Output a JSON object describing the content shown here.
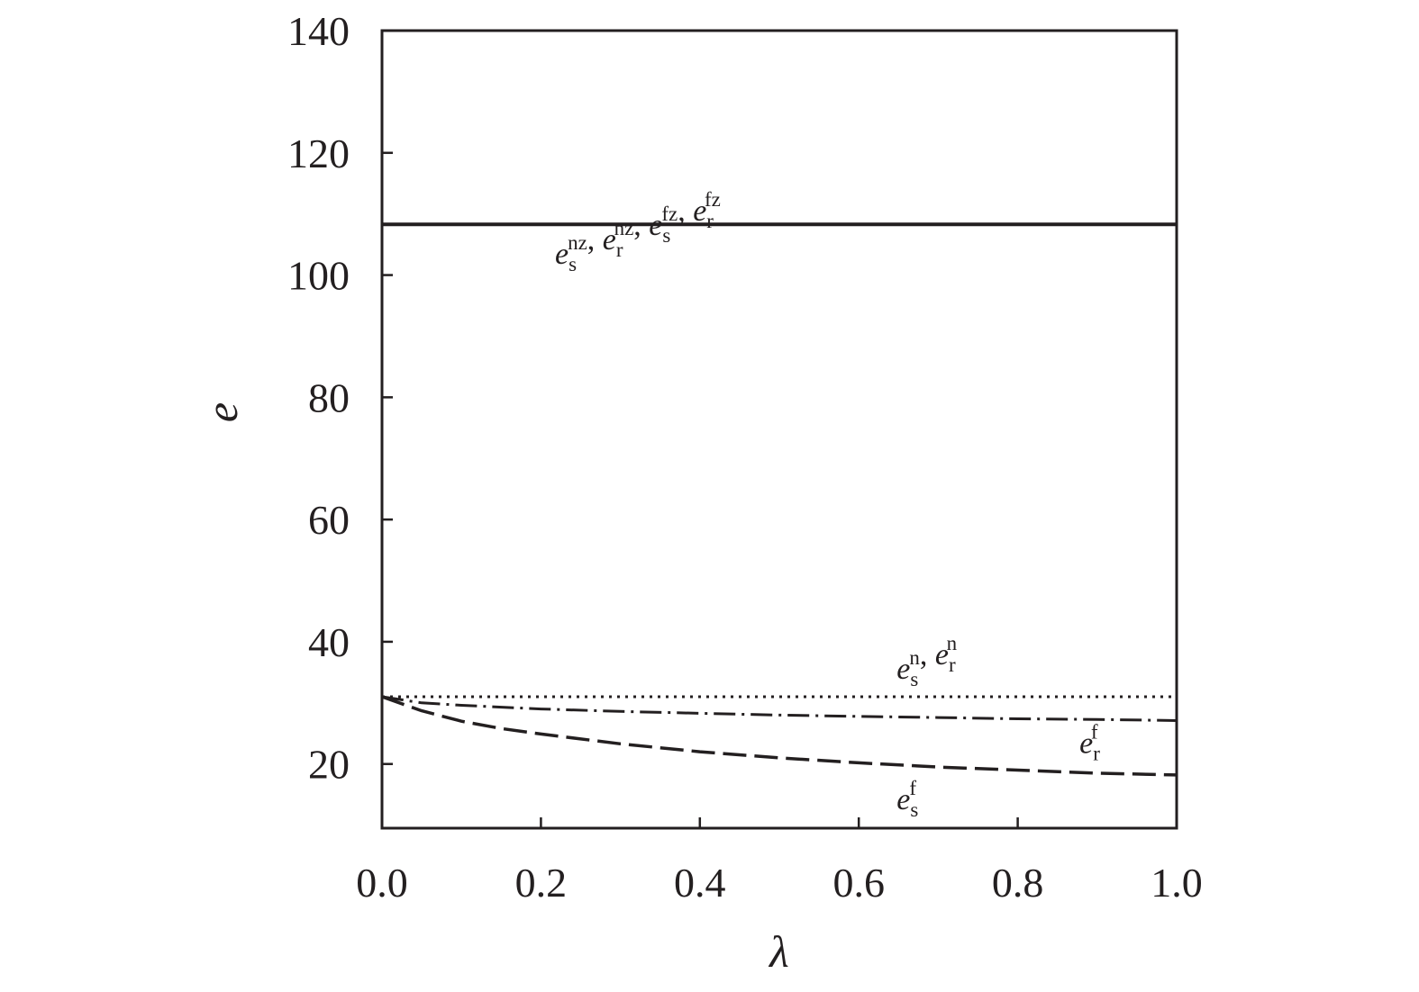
{
  "chart_data": {
    "type": "line",
    "xlabel": "λ",
    "ylabel": "e",
    "xlim": [
      0.0,
      1.0
    ],
    "ylim": [
      9.5,
      140
    ],
    "x_ticks": [
      "0.0",
      "0.2",
      "0.4",
      "0.6",
      "0.8",
      "1.0"
    ],
    "y_ticks": [
      "20",
      "40",
      "60",
      "80",
      "100",
      "120",
      "140"
    ],
    "grid": false,
    "legend": "none",
    "series": [
      {
        "label_parts": [
          {
            "var": "e",
            "sub": "s",
            "sup": "nz"
          },
          {
            "sep": ", "
          },
          {
            "var": "e",
            "sub": "r",
            "sup": "nz"
          },
          {
            "sep": ", "
          },
          {
            "var": "e",
            "sub": "s",
            "sup": "fz"
          },
          {
            "sep": ", "
          },
          {
            "var": "e",
            "sub": "r",
            "sup": "fz"
          }
        ],
        "style": "solid",
        "x": [
          0.0,
          0.2,
          0.4,
          0.6,
          0.8,
          1.0
        ],
        "y": [
          108.3,
          108.3,
          108.3,
          108.3,
          108.3,
          108.3
        ]
      },
      {
        "label_parts": [
          {
            "var": "e",
            "sub": "s",
            "sup": "n"
          },
          {
            "sep": ", "
          },
          {
            "var": "e",
            "sub": "r",
            "sup": "n"
          }
        ],
        "style": "dotted",
        "x": [
          0.0,
          0.2,
          0.4,
          0.6,
          0.8,
          1.0
        ],
        "y": [
          31.0,
          31.0,
          31.0,
          31.0,
          31.0,
          31.0
        ]
      },
      {
        "label_parts": [
          {
            "var": "e",
            "sub": "r",
            "sup": "f"
          }
        ],
        "style": "dashdot",
        "x": [
          0.0,
          0.05,
          0.1,
          0.2,
          0.3,
          0.4,
          0.5,
          0.6,
          0.7,
          0.8,
          0.9,
          1.0
        ],
        "y": [
          31.0,
          30.0,
          29.6,
          29.0,
          28.6,
          28.3,
          28.0,
          27.8,
          27.6,
          27.4,
          27.3,
          27.1
        ]
      },
      {
        "label_parts": [
          {
            "var": "e",
            "sub": "s",
            "sup": "f"
          }
        ],
        "style": "dashed",
        "x": [
          0.0,
          0.05,
          0.1,
          0.15,
          0.2,
          0.3,
          0.4,
          0.5,
          0.6,
          0.7,
          0.8,
          0.9,
          1.0
        ],
        "y": [
          31.0,
          28.7,
          27.0,
          25.8,
          24.9,
          23.3,
          22.0,
          21.0,
          20.2,
          19.5,
          19.0,
          18.5,
          18.2
        ]
      }
    ]
  }
}
